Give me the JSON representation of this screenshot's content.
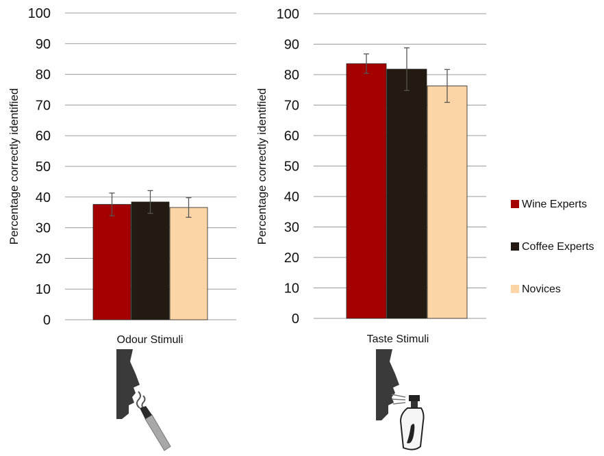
{
  "chart_data": [
    {
      "type": "bar",
      "ylabel": "Percentage correctly identified",
      "categories": [
        "Odour Stimuli"
      ],
      "ylim": [
        0,
        100
      ],
      "yticks": [
        0,
        10,
        20,
        30,
        40,
        50,
        60,
        70,
        80,
        90,
        100
      ],
      "grid": true,
      "series": [
        {
          "name": "Wine Experts",
          "values": [
            37.6
          ],
          "error": [
            3.7
          ]
        },
        {
          "name": "Coffee Experts",
          "values": [
            38.4
          ],
          "error": [
            3.7
          ]
        },
        {
          "name": "Novices",
          "values": [
            36.6
          ],
          "error": [
            3.2
          ]
        }
      ]
    },
    {
      "type": "bar",
      "ylabel": "Percentage correctly identified",
      "categories": [
        "Taste Stimuli"
      ],
      "ylim": [
        0,
        100
      ],
      "yticks": [
        0,
        10,
        20,
        30,
        40,
        50,
        60,
        70,
        80,
        90,
        100
      ],
      "grid": true,
      "series": [
        {
          "name": "Wine Experts",
          "values": [
            83.6
          ],
          "error": [
            3.2
          ]
        },
        {
          "name": "Coffee Experts",
          "values": [
            81.8
          ],
          "error": [
            7.0
          ]
        },
        {
          "name": "Novices",
          "values": [
            76.3
          ],
          "error": [
            5.4
          ]
        }
      ]
    }
  ],
  "legend": {
    "placement": "right",
    "items": [
      {
        "label": "Wine Experts",
        "color": "#a50000"
      },
      {
        "label": "Coffee Experts",
        "color": "#231b11"
      },
      {
        "label": "Novices",
        "color": "#fcd4a6"
      }
    ]
  },
  "colors": {
    "wine": "#a50000",
    "coffee": "#231b11",
    "novices": "#fcd4a6",
    "gridline": "#9a9a9a",
    "icon": "#3a3a3a"
  },
  "icons": {
    "left": "face-smelling-pen-icon",
    "right": "face-spray-bottle-icon"
  }
}
